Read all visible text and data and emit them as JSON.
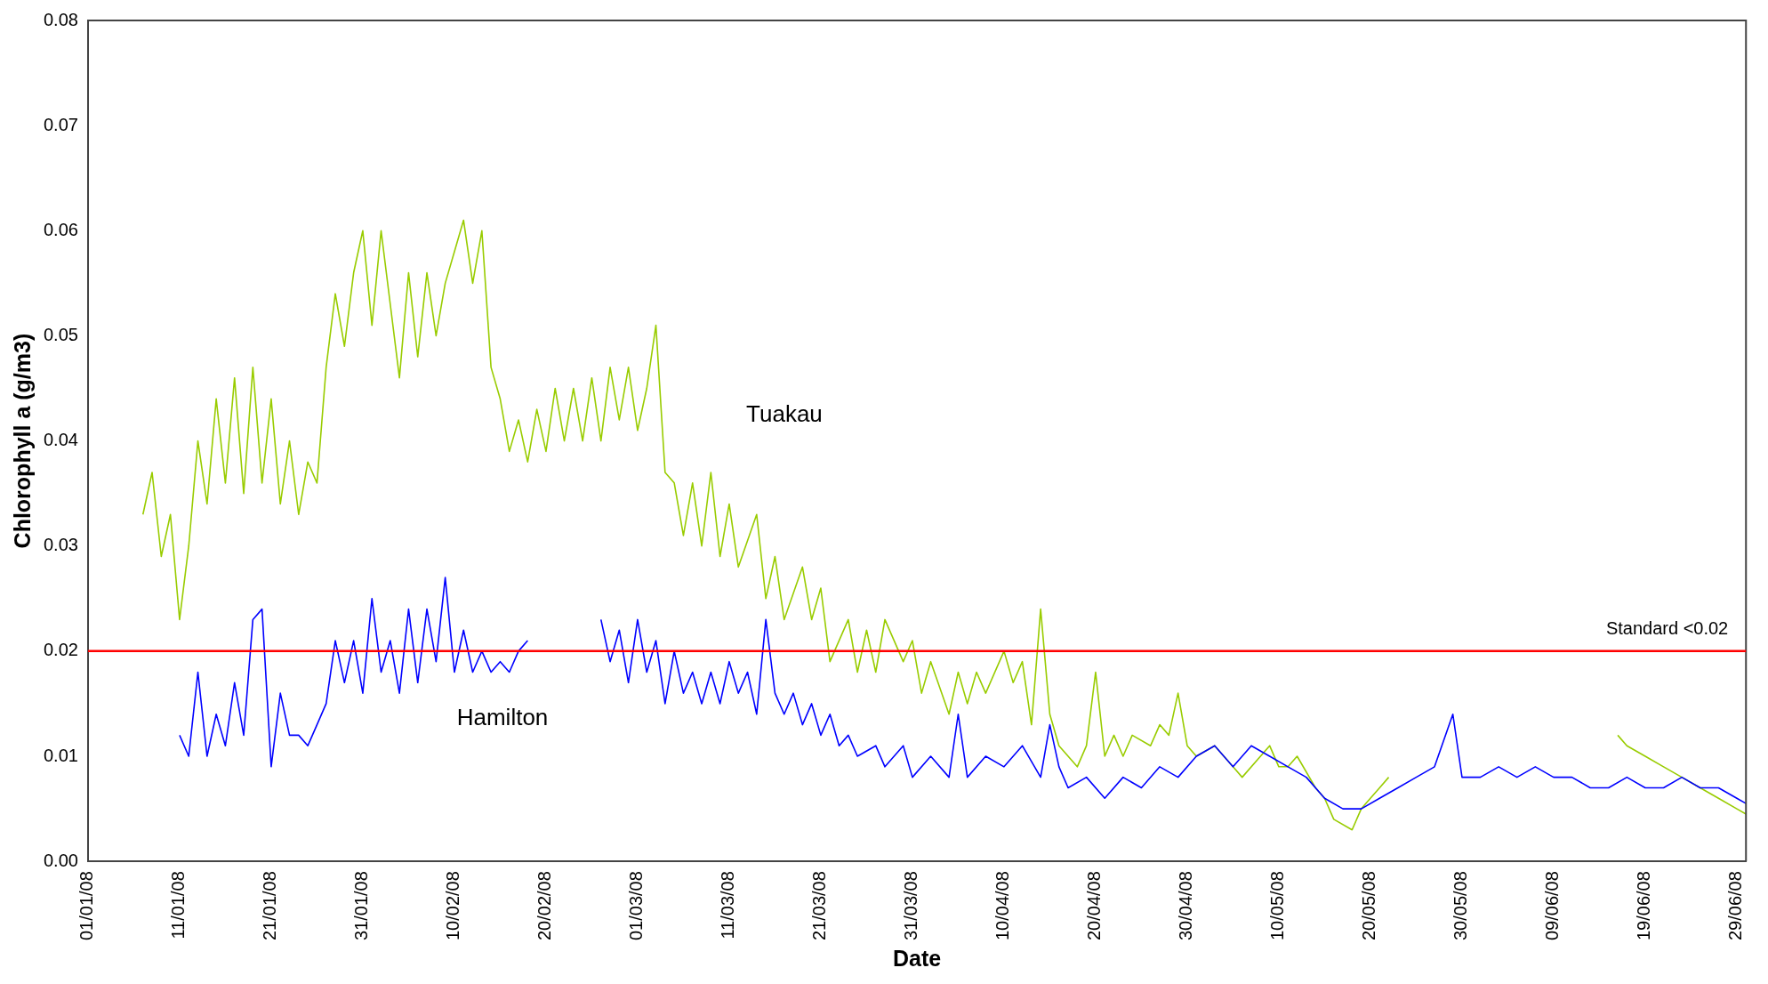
{
  "chart_data": {
    "type": "line",
    "xlabel": "Date",
    "ylabel": "Chlorophyll a (g/m3)",
    "grid": false,
    "legend": false,
    "marker": "none",
    "line_style": "solid",
    "xlim": [
      "--01-01",
      "--06-30"
    ],
    "xticks": [
      {
        "value": "--01-01",
        "label": "01/01/08"
      },
      {
        "value": "--01-11",
        "label": "11/01/08"
      },
      {
        "value": "--01-21",
        "label": "21/01/08"
      },
      {
        "value": "--01-31",
        "label": "31/01/08"
      },
      {
        "value": "--02-10",
        "label": "10/02/08"
      },
      {
        "value": "--02-20",
        "label": "20/02/08"
      },
      {
        "value": "--03-01",
        "label": "01/03/08"
      },
      {
        "value": "--03-11",
        "label": "11/03/08"
      },
      {
        "value": "--03-21",
        "label": "21/03/08"
      },
      {
        "value": "--03-31",
        "label": "31/03/08"
      },
      {
        "value": "--04-10",
        "label": "10/04/08"
      },
      {
        "value": "--04-20",
        "label": "20/04/08"
      },
      {
        "value": "--04-30",
        "label": "30/04/08"
      },
      {
        "value": "--05-10",
        "label": "10/05/08"
      },
      {
        "value": "--05-20",
        "label": "20/05/08"
      },
      {
        "value": "--05-30",
        "label": "30/05/08"
      },
      {
        "value": "--06-09",
        "label": "09/06/08"
      },
      {
        "value": "--06-19",
        "label": "19/06/08"
      },
      {
        "value": "--06-29",
        "label": "29/06/08"
      }
    ],
    "ylim": [
      0,
      0.08
    ],
    "yticks": [
      {
        "value": 0,
        "label": "0.00"
      },
      {
        "value": 0.01,
        "label": "0.01"
      },
      {
        "value": 0.02,
        "label": "0.02"
      },
      {
        "value": 0.03,
        "label": "0.03"
      },
      {
        "value": 0.04,
        "label": "0.04"
      },
      {
        "value": 0.05,
        "label": "0.05"
      },
      {
        "value": 0.06,
        "label": "0.06"
      },
      {
        "value": 0.07,
        "label": "0.07"
      },
      {
        "value": 0.08,
        "label": "0.08"
      }
    ],
    "ref_lines": [
      {
        "axis": "y",
        "value": 0.02,
        "label": "Standard <0.02",
        "color": "#ff0000"
      }
    ],
    "series": [
      {
        "name": "Tuakau",
        "color": "#99cc00",
        "x": [
          "--01-07",
          "--01-08",
          "--01-09",
          "--01-10",
          "--01-11",
          "--01-12",
          "--01-13",
          "--01-14",
          "--01-15",
          "--01-16",
          "--01-17",
          "--01-18",
          "--01-19",
          "--01-20",
          "--01-21",
          "--01-22",
          "--01-23",
          "--01-24",
          "--01-25",
          "--01-26",
          "--01-27",
          "--01-28",
          "--01-29",
          "--01-30",
          "--01-31",
          "--02-01",
          "--02-02",
          "--02-03",
          "--02-04",
          "--02-05",
          "--02-06",
          "--02-07",
          "--02-08",
          "--02-09",
          "--02-10",
          "--02-11",
          "--02-12",
          "--02-13",
          "--02-14",
          "--02-15",
          "--02-16",
          "--02-17",
          "--02-18",
          "--02-19",
          "--02-20",
          "--02-21",
          "--02-22",
          "--02-23",
          "--02-24",
          "--02-25",
          "--02-26",
          "--02-27",
          "--02-28",
          "--02-29",
          "--03-01",
          "--03-02",
          "--03-03",
          "--03-04",
          "--03-05",
          "--03-06",
          "--03-07",
          "--03-08",
          "--03-09",
          "--03-10",
          "--03-11",
          "--03-12",
          "--03-14",
          "--03-15",
          "--03-16",
          "--03-17",
          "--03-19",
          "--03-20",
          "--03-21",
          "--03-22",
          "--03-24",
          "--03-25",
          "--03-26",
          "--03-27",
          "--03-28",
          "--03-30",
          "--03-31",
          "--04-01",
          "--04-02",
          "--04-04",
          "--04-05",
          "--04-06",
          "--04-07",
          "--04-08",
          "--04-10",
          "--04-11",
          "--04-12",
          "--04-13",
          "--04-14",
          "--04-15",
          "--04-16",
          "--04-17",
          "--04-18",
          "--04-19",
          "--04-20",
          "--04-21",
          "--04-22",
          "--04-23",
          "--04-24",
          "--04-26",
          "--04-27",
          "--04-28",
          "--04-29",
          "--04-30",
          "--05-01",
          "--05-03",
          "--05-04",
          "--05-05",
          "--05-06",
          "--05-08",
          "--05-09",
          "--05-10",
          "--05-11",
          "--05-12",
          "--05-14",
          "--05-15",
          "--05-16",
          "--05-18",
          "--05-19",
          "--05-20",
          "--05-21",
          "--05-22",
          "--06-01",
          "--06-16",
          "--06-17",
          "--06-19",
          "--06-21",
          "--06-23",
          "--06-25",
          "--06-27",
          "--06-29",
          "--06-30"
        ],
        "values": [
          0.033,
          0.037,
          0.029,
          0.033,
          0.023,
          0.03,
          0.04,
          0.034,
          0.044,
          0.036,
          0.046,
          0.035,
          0.047,
          0.036,
          0.044,
          0.034,
          0.04,
          0.033,
          0.038,
          0.036,
          0.047,
          0.054,
          0.049,
          0.056,
          0.06,
          0.051,
          0.06,
          0.053,
          0.046,
          0.056,
          0.048,
          0.056,
          0.05,
          0.055,
          0.058,
          0.061,
          0.055,
          0.06,
          0.047,
          0.044,
          0.039,
          0.042,
          0.038,
          0.043,
          0.039,
          0.045,
          0.04,
          0.045,
          0.04,
          0.046,
          0.04,
          0.047,
          0.042,
          0.047,
          0.041,
          0.045,
          0.051,
          0.037,
          0.036,
          0.031,
          0.036,
          0.03,
          0.037,
          0.029,
          0.034,
          0.028,
          0.033,
          0.025,
          0.029,
          0.023,
          0.028,
          0.023,
          0.026,
          0.019,
          0.023,
          0.018,
          0.022,
          0.018,
          0.023,
          0.019,
          0.021,
          0.016,
          0.019,
          0.014,
          0.018,
          0.015,
          0.018,
          0.016,
          0.02,
          0.017,
          0.019,
          0.013,
          0.024,
          0.014,
          0.011,
          0.01,
          0.009,
          0.011,
          0.018,
          0.01,
          0.012,
          0.01,
          0.012,
          0.011,
          0.013,
          0.012,
          0.016,
          0.011,
          0.01,
          0.011,
          0.01,
          0.009,
          0.008,
          0.01,
          0.011,
          0.009,
          0.009,
          0.01,
          0.007,
          0.006,
          0.004,
          0.003,
          0.005,
          0.006,
          0.007,
          0.008,
          null,
          0.012,
          0.011,
          0.01,
          0.009,
          0.008,
          0.007,
          0.006,
          0.005,
          0.0045
        ]
      },
      {
        "name": "Hamilton",
        "color": "#0000ff",
        "x": [
          "--01-11",
          "--01-12",
          "--01-13",
          "--01-14",
          "--01-15",
          "--01-16",
          "--01-17",
          "--01-18",
          "--01-19",
          "--01-20",
          "--01-21",
          "--01-22",
          "--01-23",
          "--01-24",
          "--01-25",
          "--01-26",
          "--01-27",
          "--01-28",
          "--01-29",
          "--01-30",
          "--01-31",
          "--02-01",
          "--02-02",
          "--02-03",
          "--02-04",
          "--02-05",
          "--02-06",
          "--02-07",
          "--02-08",
          "--02-09",
          "--02-10",
          "--02-11",
          "--02-12",
          "--02-13",
          "--02-14",
          "--02-15",
          "--02-16",
          "--02-17",
          "--02-18",
          "--02-22",
          "--02-26",
          "--02-27",
          "--02-28",
          "--02-29",
          "--03-01",
          "--03-02",
          "--03-03",
          "--03-04",
          "--03-05",
          "--03-06",
          "--03-07",
          "--03-08",
          "--03-09",
          "--03-10",
          "--03-11",
          "--03-12",
          "--03-13",
          "--03-14",
          "--03-15",
          "--03-16",
          "--03-17",
          "--03-18",
          "--03-19",
          "--03-20",
          "--03-21",
          "--03-22",
          "--03-23",
          "--03-24",
          "--03-25",
          "--03-27",
          "--03-28",
          "--03-30",
          "--03-31",
          "--04-02",
          "--04-04",
          "--04-05",
          "--04-06",
          "--04-08",
          "--04-10",
          "--04-12",
          "--04-14",
          "--04-15",
          "--04-16",
          "--04-17",
          "--04-19",
          "--04-21",
          "--04-23",
          "--04-25",
          "--04-27",
          "--04-29",
          "--05-01",
          "--05-03",
          "--05-05",
          "--05-07",
          "--05-09",
          "--05-11",
          "--05-13",
          "--05-15",
          "--05-17",
          "--05-19",
          "--05-21",
          "--05-23",
          "--05-25",
          "--05-27",
          "--05-29",
          "--05-30",
          "--06-01",
          "--06-03",
          "--06-05",
          "--06-07",
          "--06-09",
          "--06-11",
          "--06-13",
          "--06-15",
          "--06-17",
          "--06-19",
          "--06-21",
          "--06-23",
          "--06-25",
          "--06-27",
          "--06-29",
          "--06-30"
        ],
        "values": [
          0.012,
          0.01,
          0.018,
          0.01,
          0.014,
          0.011,
          0.017,
          0.012,
          0.023,
          0.024,
          0.009,
          0.016,
          0.012,
          0.012,
          0.011,
          0.013,
          0.015,
          0.021,
          0.017,
          0.021,
          0.016,
          0.025,
          0.018,
          0.021,
          0.016,
          0.024,
          0.017,
          0.024,
          0.019,
          0.027,
          0.018,
          0.022,
          0.018,
          0.02,
          0.018,
          0.019,
          0.018,
          0.02,
          0.021,
          null,
          0.023,
          0.019,
          0.022,
          0.017,
          0.023,
          0.018,
          0.021,
          0.015,
          0.02,
          0.016,
          0.018,
          0.015,
          0.018,
          0.015,
          0.019,
          0.016,
          0.018,
          0.014,
          0.023,
          0.016,
          0.014,
          0.016,
          0.013,
          0.015,
          0.012,
          0.014,
          0.011,
          0.012,
          0.01,
          0.011,
          0.009,
          0.011,
          0.008,
          0.01,
          0.008,
          0.014,
          0.008,
          0.01,
          0.009,
          0.011,
          0.008,
          0.013,
          0.009,
          0.007,
          0.008,
          0.006,
          0.008,
          0.007,
          0.009,
          0.008,
          0.01,
          0.011,
          0.009,
          0.011,
          0.01,
          0.009,
          0.008,
          0.006,
          0.005,
          0.005,
          0.006,
          0.007,
          0.008,
          0.009,
          0.014,
          0.008,
          0.008,
          0.009,
          0.008,
          0.009,
          0.008,
          0.008,
          0.007,
          0.007,
          0.008,
          0.007,
          0.007,
          0.008,
          0.007,
          0.007,
          0.006,
          0.0055
        ]
      }
    ]
  }
}
